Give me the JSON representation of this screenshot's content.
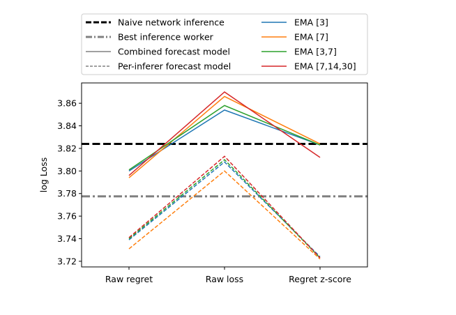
{
  "chart_data": {
    "type": "line",
    "title": "",
    "xlabel": "",
    "ylabel": "log Loss",
    "categories": [
      "Raw regret",
      "Raw loss",
      "Regret z-score"
    ],
    "ylim": [
      3.715,
      3.878
    ],
    "yticks": [
      3.72,
      3.74,
      3.76,
      3.78,
      3.8,
      3.82,
      3.84,
      3.86
    ],
    "ytick_labels": [
      "3.72",
      "3.74",
      "3.76",
      "3.78",
      "3.80",
      "3.82",
      "3.84",
      "3.86"
    ],
    "grid": false,
    "legend_position": "top",
    "reference_lines": [
      {
        "name": "Naive network inference",
        "value": 3.824,
        "color": "#000000",
        "style": "dashed"
      },
      {
        "name": "Best inference worker",
        "value": 3.7775,
        "color": "#808080",
        "style": "dashdot"
      }
    ],
    "style_legend": [
      {
        "name": "Combined forecast model",
        "color": "#808080",
        "style": "solid"
      },
      {
        "name": "Per-inferer forecast model",
        "color": "#808080",
        "style": "dashed"
      }
    ],
    "series": [
      {
        "name": "EMA [3]",
        "color": "#1f77b4",
        "combined": [
          3.8,
          3.854,
          3.823
        ],
        "per_inferer": [
          3.739,
          3.808,
          3.724
        ]
      },
      {
        "name": "EMA [7]",
        "color": "#ff7f0e",
        "combined": [
          3.794,
          3.866,
          3.824
        ],
        "per_inferer": [
          3.731,
          3.8,
          3.722
        ]
      },
      {
        "name": "EMA [3,7]",
        "color": "#2ca02c",
        "combined": [
          3.801,
          3.858,
          3.823
        ],
        "per_inferer": [
          3.74,
          3.81,
          3.723
        ]
      },
      {
        "name": "EMA [7,14,30]",
        "color": "#d62728",
        "combined": [
          3.796,
          3.87,
          3.812
        ],
        "per_inferer": [
          3.741,
          3.813,
          3.723
        ]
      }
    ]
  }
}
